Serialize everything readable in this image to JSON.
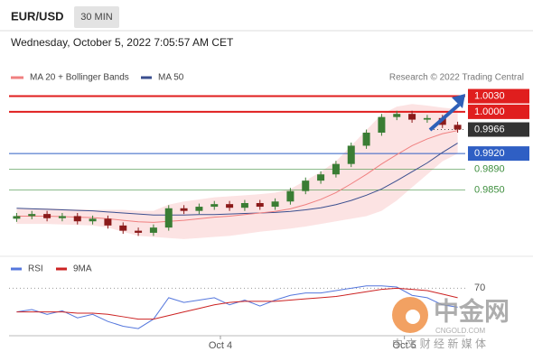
{
  "header": {
    "symbol": "EUR/USD",
    "timeframe": "30 MIN",
    "date": "Wednesday, October 5, 2022 7:05:57 AM CET"
  },
  "watermark": {
    "name": "中金网",
    "site": "CNGOLD.COM",
    "tagline": "中 文 财 经 新 媒 体"
  },
  "chart_data": {
    "type": "candlestick",
    "legend": {
      "ma20": "MA 20 + Bollinger Bands",
      "ma50": "MA 50"
    },
    "source": "Research © 2022 Trading Central",
    "ylim": [
      0.9735,
      1.005
    ],
    "xlim": [
      0,
      30
    ],
    "xticks": [
      {
        "value": 13.9,
        "label": "Oct 4"
      },
      {
        "value": 26,
        "label": "Oct 5"
      }
    ],
    "up_color": "#3a7d34",
    "down_color": "#8b1a1a",
    "open": [
      0.9795,
      0.98,
      0.9804,
      0.9796,
      0.98,
      0.979,
      0.9795,
      0.9782,
      0.9772,
      0.9768,
      0.9778,
      0.9815,
      0.981,
      0.9818,
      0.9823,
      0.9816,
      0.9825,
      0.9818,
      0.9828,
      0.9848,
      0.9868,
      0.988,
      0.99,
      0.9935,
      0.996,
      0.999,
      0.9996,
      0.9985,
      0.9988,
      0.9975
    ],
    "high": [
      0.9806,
      0.981,
      0.981,
      0.9806,
      0.9806,
      0.9801,
      0.9801,
      0.9788,
      0.9778,
      0.9784,
      0.9821,
      0.9821,
      0.9824,
      0.9829,
      0.9829,
      0.9831,
      0.9831,
      0.9834,
      0.9854,
      0.9874,
      0.9886,
      0.9906,
      0.9941,
      0.9966,
      0.9996,
      1.0002,
      1.0002,
      0.9994,
      0.9994,
      0.9981
    ],
    "low": [
      0.9789,
      0.9794,
      0.979,
      0.979,
      0.9784,
      0.9784,
      0.9776,
      0.9766,
      0.9762,
      0.9762,
      0.9772,
      0.9804,
      0.9804,
      0.9812,
      0.981,
      0.981,
      0.9812,
      0.9812,
      0.9822,
      0.9842,
      0.9862,
      0.9874,
      0.9894,
      0.9929,
      0.9954,
      0.9984,
      0.9979,
      0.9979,
      0.9969,
      0.996
    ],
    "close": [
      0.98,
      0.9804,
      0.9796,
      0.98,
      0.979,
      0.9795,
      0.9782,
      0.9772,
      0.9768,
      0.9778,
      0.9815,
      0.981,
      0.9818,
      0.9823,
      0.9816,
      0.9825,
      0.9818,
      0.9828,
      0.9848,
      0.9868,
      0.988,
      0.99,
      0.9935,
      0.996,
      0.999,
      0.9996,
      0.9985,
      0.9988,
      0.9975,
      0.9966
    ],
    "ma20": {
      "color": "#f08080",
      "values": [
        0.98,
        0.98,
        0.98,
        0.9799,
        0.9798,
        0.9797,
        0.9795,
        0.9792,
        0.9789,
        0.9788,
        0.979,
        0.9792,
        0.9795,
        0.9798,
        0.98,
        0.9803,
        0.9806,
        0.9809,
        0.9814,
        0.9822,
        0.9832,
        0.9845,
        0.9862,
        0.988,
        0.99,
        0.9918,
        0.9935,
        0.9948,
        0.9958,
        0.9964
      ]
    },
    "bollinger_upper": [
      0.9815,
      0.9815,
      0.9815,
      0.9814,
      0.9813,
      0.9812,
      0.9812,
      0.9812,
      0.981,
      0.981,
      0.9822,
      0.9828,
      0.9832,
      0.9836,
      0.9838,
      0.984,
      0.9842,
      0.9845,
      0.9852,
      0.9868,
      0.9885,
      0.9905,
      0.9935,
      0.9965,
      0.9995,
      1.001,
      1.0015,
      1.0012,
      1.0008,
      1.0005
    ],
    "bollinger_lower": [
      0.9785,
      0.9785,
      0.9785,
      0.9784,
      0.9783,
      0.9782,
      0.9778,
      0.977,
      0.9762,
      0.976,
      0.9758,
      0.9756,
      0.9758,
      0.976,
      0.9762,
      0.9766,
      0.977,
      0.9773,
      0.9776,
      0.978,
      0.9785,
      0.979,
      0.9795,
      0.98,
      0.981,
      0.983,
      0.9855,
      0.988,
      0.9905,
      0.992
    ],
    "band_color": "#fbd9d9",
    "ma50": {
      "color": "#3b4f8f",
      "values": [
        0.9815,
        0.9814,
        0.9813,
        0.9812,
        0.9811,
        0.981,
        0.9808,
        0.9806,
        0.9804,
        0.9802,
        0.9802,
        0.9802,
        0.9803,
        0.9803,
        0.9804,
        0.9805,
        0.9806,
        0.9807,
        0.9809,
        0.9812,
        0.9816,
        0.9822,
        0.983,
        0.984,
        0.9852,
        0.9868,
        0.9885,
        0.9902,
        0.9922,
        0.994
      ]
    },
    "levels": [
      {
        "value": 1.003,
        "label": "1.0030",
        "color": "#e01e1e",
        "boxed": true,
        "line": "solid"
      },
      {
        "value": 1.0,
        "label": "1.0000",
        "color": "#e01e1e",
        "boxed": true,
        "line": "solid"
      },
      {
        "value": 0.9966,
        "label": "0.9966",
        "color": "#333333",
        "boxed": true,
        "line": "dotted"
      },
      {
        "value": 0.992,
        "label": "0.9920",
        "color": "#2f5fc4",
        "boxed": true,
        "line": "solid"
      },
      {
        "value": 0.989,
        "label": "0.9890",
        "color": "#3f8f3f",
        "boxed": false,
        "line": "solid"
      },
      {
        "value": 0.985,
        "label": "0.9850",
        "color": "#3f8f3f",
        "boxed": false,
        "line": "solid"
      }
    ],
    "rsi": {
      "ylim": [
        30,
        90
      ],
      "yticks": [
        70
      ],
      "series": [
        {
          "name": "RSI",
          "color": "#5577dd",
          "values": [
            50,
            52,
            48,
            51,
            45,
            48,
            42,
            38,
            36,
            44,
            62,
            58,
            60,
            62,
            56,
            60,
            55,
            60,
            64,
            66,
            66,
            68,
            70,
            72,
            72,
            71,
            64,
            62,
            56,
            54
          ]
        },
        {
          "name": "9MA",
          "color": "#cc2222",
          "values": [
            50,
            50,
            50,
            50,
            49,
            49,
            48,
            46,
            44,
            44,
            47,
            50,
            53,
            56,
            58,
            59,
            59,
            59,
            60,
            61,
            62,
            63,
            65,
            67,
            69,
            70,
            69,
            68,
            65,
            62
          ]
        }
      ]
    }
  }
}
